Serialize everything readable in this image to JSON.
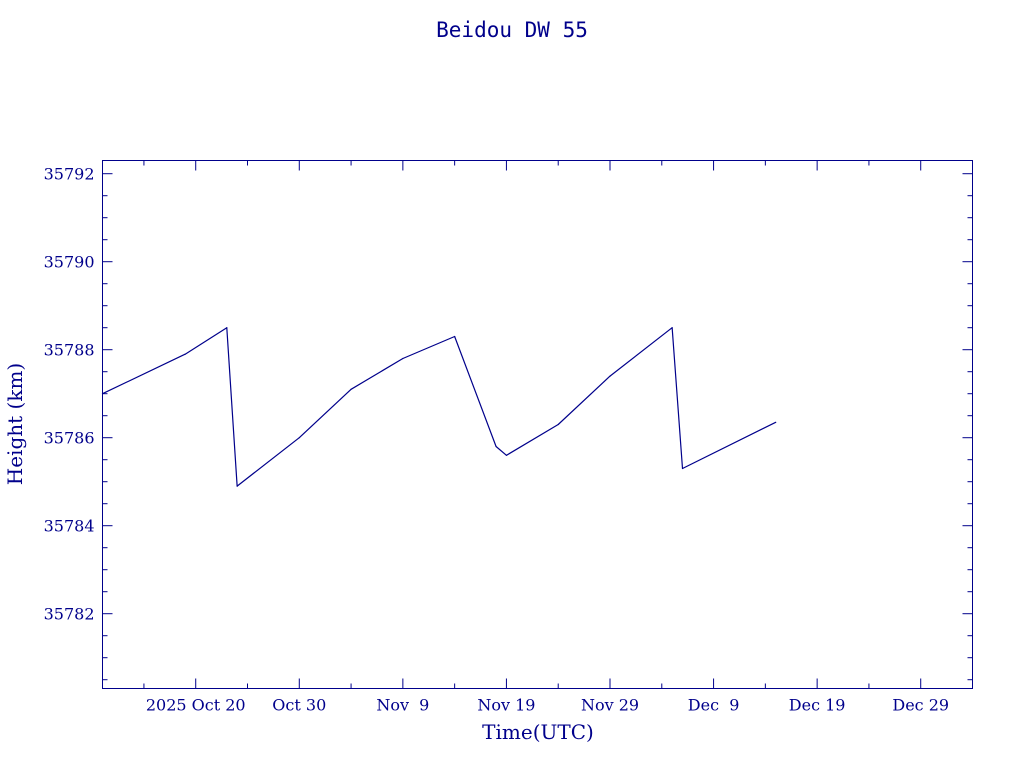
{
  "chart_data": {
    "type": "line",
    "title": "Beidou DW 55",
    "xlabel": "Time(UTC)",
    "ylabel": "Height (km)",
    "ylim": [
      35780.3,
      35792.3
    ],
    "xlim": [
      "2025-10-11",
      "2026-01-03"
    ],
    "x_ticks": [
      {
        "date": "2025-10-20",
        "label": "2025 Oct 20"
      },
      {
        "date": "2025-10-30",
        "label": "Oct 30"
      },
      {
        "date": "2025-11-09",
        "label": "Nov  9"
      },
      {
        "date": "2025-11-19",
        "label": "Nov 19"
      },
      {
        "date": "2025-11-29",
        "label": "Nov 29"
      },
      {
        "date": "2025-12-09",
        "label": "Dec  9"
      },
      {
        "date": "2025-12-19",
        "label": "Dec 19"
      },
      {
        "date": "2025-12-29",
        "label": "Dec 29"
      }
    ],
    "y_ticks": [
      35782,
      35784,
      35786,
      35788,
      35790,
      35792
    ],
    "y_tick_labels": [
      "35782",
      "35784",
      "35786",
      "35788",
      "35790",
      "35792"
    ],
    "grid": false,
    "line_color": "#00008b",
    "series": [
      {
        "x": [
          "2025-10-11",
          "2025-10-19",
          "2025-10-23",
          "2025-10-24",
          "2025-10-30",
          "2025-11-04",
          "2025-11-09",
          "2025-11-14",
          "2025-11-18",
          "2025-11-19",
          "2025-11-24",
          "2025-11-29",
          "2025-12-05",
          "2025-12-06",
          "2025-12-15"
        ],
        "values": [
          35787.0,
          35787.9,
          35788.5,
          35784.9,
          35786.0,
          35787.1,
          35787.8,
          35788.3,
          35785.8,
          35785.6,
          35786.3,
          35787.4,
          35788.5,
          35785.3,
          35786.35
        ]
      }
    ]
  }
}
